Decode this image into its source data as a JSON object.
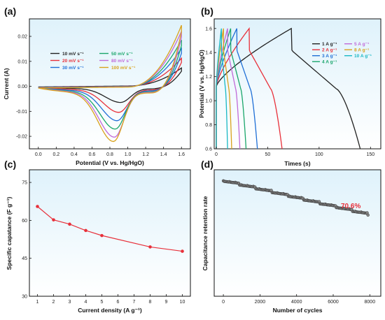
{
  "chart_data": [
    {
      "panel_label": "(a)",
      "type": "line",
      "xlabel": "Potential (V vs. Hg/HgO)",
      "ylabel": "Current (A)",
      "xlim": [
        -0.1,
        1.7
      ],
      "ylim": [
        -0.025,
        0.027
      ],
      "xticks": [
        "0.0",
        "0.2",
        "0.4",
        "0.6",
        "0.8",
        "1.0",
        "1.2",
        "1.4",
        "1.6"
      ],
      "yticks": [
        "0.02",
        "0.01",
        "0.00",
        "-0.01",
        "-0.02"
      ],
      "legend_position": "top-center",
      "background": "gradient-light-blue",
      "series": [
        {
          "name": "10 mV s⁻¹",
          "color": "#222222",
          "vertex_current": 0.0075,
          "cathodic_peak_potential": 0.92,
          "cathodic_peak_current": -0.0055,
          "baseline_current": -0.0008
        },
        {
          "name": "20 mV s⁻¹",
          "color": "#e8303a",
          "vertex_current": 0.0115,
          "cathodic_peak_potential": 0.9,
          "cathodic_peak_current": -0.009,
          "baseline_current": -0.0012
        },
        {
          "name": "30 mV s⁻¹",
          "color": "#1f6fd6",
          "vertex_current": 0.0155,
          "cathodic_peak_potential": 0.88,
          "cathodic_peak_current": -0.012,
          "baseline_current": -0.0015
        },
        {
          "name": "50 mV s⁻¹",
          "color": "#1aa66b",
          "vertex_current": 0.019,
          "cathodic_peak_potential": 0.86,
          "cathodic_peak_current": -0.015,
          "baseline_current": -0.0018
        },
        {
          "name": "80 mV s⁻¹",
          "color": "#c06ad8",
          "vertex_current": 0.0225,
          "cathodic_peak_potential": 0.85,
          "cathodic_peak_current": -0.018,
          "baseline_current": -0.002
        },
        {
          "name": "100 mV s⁻¹",
          "color": "#d9a21c",
          "vertex_current": 0.025,
          "cathodic_peak_potential": 0.84,
          "cathodic_peak_current": -0.0195,
          "baseline_current": -0.0022
        }
      ]
    },
    {
      "panel_label": "(b)",
      "type": "line",
      "xlabel": "Times (s)",
      "ylabel": "Potential (V vs. Hg/HgO)",
      "xlim": [
        -2,
        160
      ],
      "ylim": [
        0.6,
        1.68
      ],
      "xticks": [
        "0",
        "50",
        "100",
        "150"
      ],
      "yticks": [
        "0.6",
        "0.8",
        "1.0",
        "1.2",
        "1.4",
        "1.6"
      ],
      "legend_position": "top-right",
      "background": "gradient-light-blue",
      "series": [
        {
          "name": "1 A g⁻¹",
          "color": "#222222",
          "charge_end_time": 73,
          "discharge_end_time": 140
        },
        {
          "name": "2 A g⁻¹",
          "color": "#e8303a",
          "charge_end_time": 32,
          "discharge_end_time": 64
        },
        {
          "name": "3 A g⁻¹",
          "color": "#1f6fd6",
          "charge_end_time": 20,
          "discharge_end_time": 40
        },
        {
          "name": "4 A g⁻¹",
          "color": "#1aa66b",
          "charge_end_time": 14,
          "discharge_end_time": 29
        },
        {
          "name": "5 A g⁻¹",
          "color": "#c06ad8",
          "charge_end_time": 11,
          "discharge_end_time": 23
        },
        {
          "name": "8 A g⁻¹",
          "color": "#d9a21c",
          "charge_end_time": 7,
          "discharge_end_time": 15
        },
        {
          "name": "10 A g⁻¹",
          "color": "#19b8c4",
          "charge_end_time": 5,
          "discharge_end_time": 11
        }
      ]
    },
    {
      "panel_label": "(c)",
      "type": "line",
      "xlabel": "Current density (A g⁻¹)",
      "ylabel": "Specific capatance (F g⁻¹)",
      "xlim": [
        0.5,
        10.5
      ],
      "ylim": [
        30,
        80
      ],
      "xticks": [
        "1",
        "2",
        "3",
        "4",
        "5",
        "6",
        "7",
        "8",
        "9",
        "10"
      ],
      "yticks": [
        "75",
        "60",
        "45",
        "30"
      ],
      "background": "gradient-light-blue",
      "color": "#e8303a",
      "x": [
        1,
        2,
        3,
        4,
        5,
        8,
        10
      ],
      "y": [
        65.5,
        60.2,
        58.5,
        56.0,
        54.0,
        49.5,
        47.8
      ]
    },
    {
      "panel_label": "(d)",
      "type": "scatter",
      "xlabel": "Number of cycles",
      "ylabel": "Capacitance retention rate",
      "xlim": [
        -500,
        8600
      ],
      "xticks": [
        "0",
        "2000",
        "4000",
        "6000",
        "8000"
      ],
      "background": "gradient-light-blue",
      "annotation": "70.6%",
      "annotation_color": "#e8303a",
      "marker_color": "#666666",
      "x_start": 0,
      "x_end": 7900,
      "retention_start": 100,
      "retention_end": 70.6
    }
  ]
}
